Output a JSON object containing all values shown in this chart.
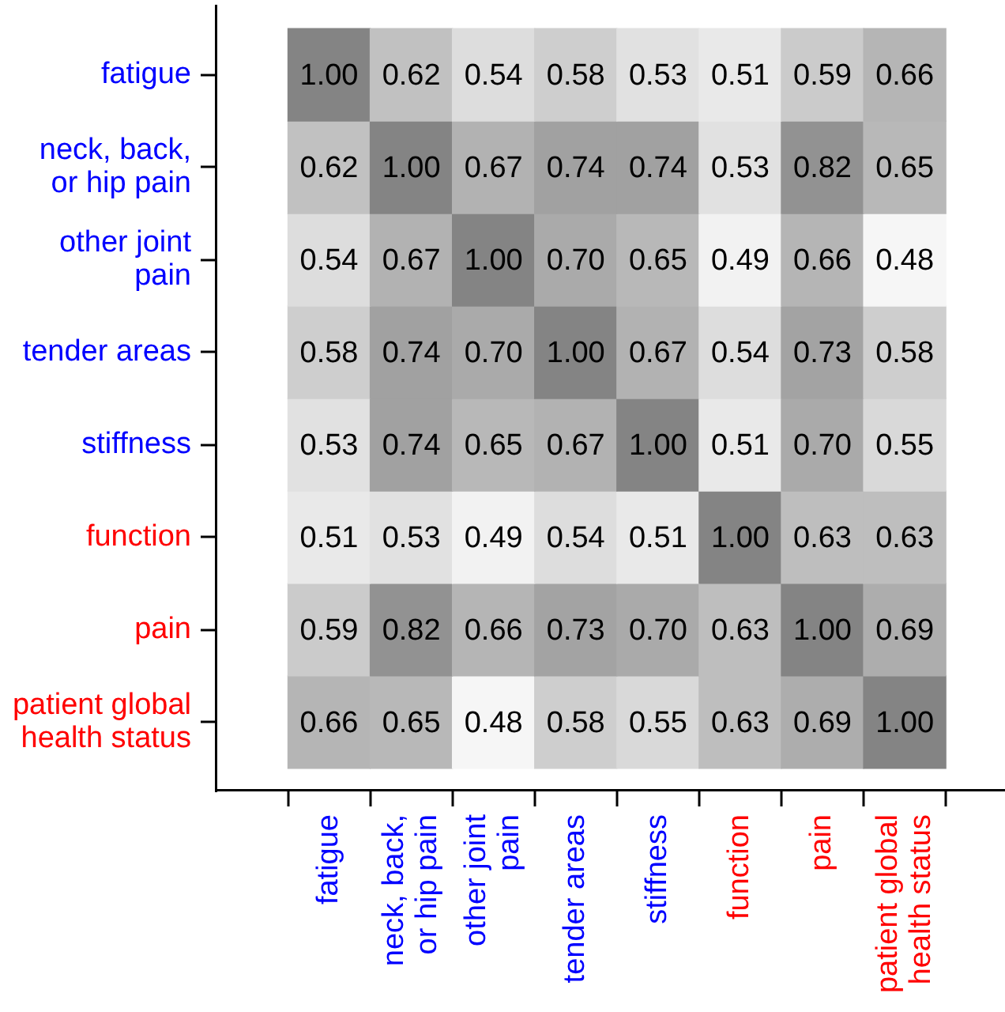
{
  "chart_data": {
    "type": "heatmap",
    "categories": [
      "fatigue",
      "neck, back,\nor hip pain",
      "other joint\npain",
      "tender areas",
      "stiffness",
      "function",
      "pain",
      "patient global\nhealth status"
    ],
    "y_categories": [
      "fatigue",
      "neck, back,\nor hip pain",
      "other joint\npain",
      "tender areas",
      "stiffness",
      "function",
      "pain",
      "patient global\nhealth status"
    ],
    "cells": [
      [
        1.0,
        0.62,
        0.54,
        0.58,
        0.53,
        0.51,
        0.59,
        0.66
      ],
      [
        0.62,
        1.0,
        0.67,
        0.74,
        0.74,
        0.53,
        0.82,
        0.65
      ],
      [
        0.54,
        0.67,
        1.0,
        0.7,
        0.65,
        0.49,
        0.66,
        0.48
      ],
      [
        0.58,
        0.74,
        0.7,
        1.0,
        0.67,
        0.54,
        0.73,
        0.58
      ],
      [
        0.53,
        0.74,
        0.65,
        0.67,
        1.0,
        0.51,
        0.7,
        0.55
      ],
      [
        0.51,
        0.53,
        0.49,
        0.54,
        0.51,
        1.0,
        0.63,
        0.63
      ],
      [
        0.59,
        0.82,
        0.66,
        0.73,
        0.7,
        0.63,
        1.0,
        0.69
      ],
      [
        0.66,
        0.65,
        0.48,
        0.58,
        0.55,
        0.63,
        0.69,
        1.0
      ]
    ],
    "cell_labels": [
      [
        "1.00",
        "0.62",
        "0.54",
        "0.58",
        "0.53",
        "0.51",
        "0.59",
        "0.66"
      ],
      [
        "0.62",
        "1.00",
        "0.67",
        "0.74",
        "0.74",
        "0.53",
        "0.82",
        "0.65"
      ],
      [
        "0.54",
        "0.67",
        "1.00",
        "0.70",
        "0.65",
        "0.49",
        "0.66",
        "0.48"
      ],
      [
        "0.58",
        "0.74",
        "0.70",
        "1.00",
        "0.67",
        "0.54",
        "0.73",
        "0.58"
      ],
      [
        "0.53",
        "0.74",
        "0.65",
        "0.67",
        "1.00",
        "0.51",
        "0.70",
        "0.55"
      ],
      [
        "0.51",
        "0.53",
        "0.49",
        "0.54",
        "0.51",
        "1.00",
        "0.63",
        "0.63"
      ],
      [
        "0.59",
        "0.82",
        "0.66",
        "0.73",
        "0.70",
        "0.63",
        "1.00",
        "0.69"
      ],
      [
        "0.66",
        "0.65",
        "0.48",
        "0.58",
        "0.55",
        "0.63",
        "0.69",
        "1.00"
      ]
    ]
  }
}
